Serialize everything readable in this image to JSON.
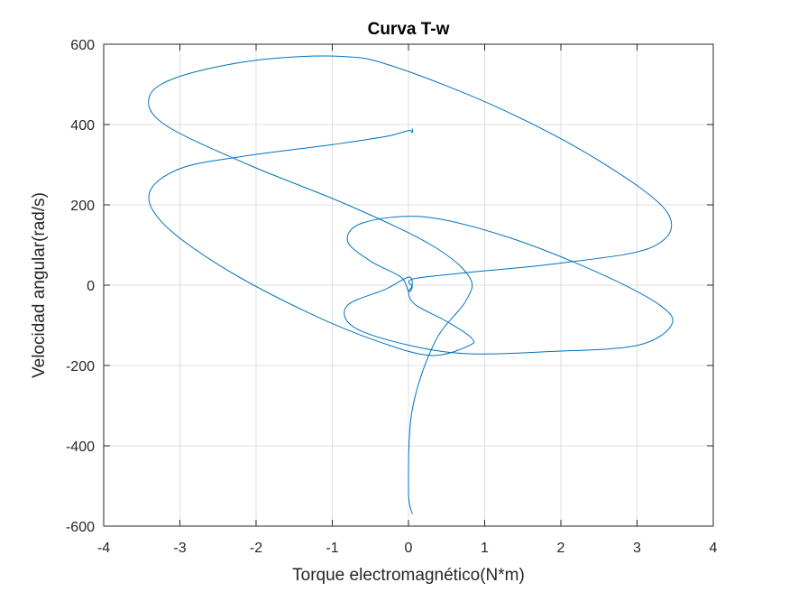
{
  "chart_data": {
    "type": "line",
    "title": "Curva T-w",
    "xlabel": "Torque electromagnético(N*m)",
    "ylabel": "Velocidad angular(rad/s)",
    "xlim": [
      -4,
      4
    ],
    "ylim": [
      -600,
      600
    ],
    "xticks": [
      -4,
      -3,
      -2,
      -1,
      0,
      1,
      2,
      3,
      4
    ],
    "yticks": [
      -600,
      -400,
      -200,
      0,
      200,
      400,
      600
    ],
    "xtick_labels": [
      "-4",
      "-3",
      "-2",
      "-1",
      "0",
      "1",
      "2",
      "3",
      "4"
    ],
    "ytick_labels": [
      "-600",
      "-400",
      "-200",
      "0",
      "200",
      "400",
      "600"
    ],
    "grid": true,
    "color": "#0072BD",
    "series": [
      {
        "x": [
          0.05,
          0.05,
          0.0,
          -0.3,
          -1.0,
          -2.2,
          -3.0,
          -3.4,
          -3.2,
          -2.4,
          -1.3,
          -0.4,
          0.3,
          0.8,
          0.82,
          0.5,
          0.1,
          0.0,
          0.05,
          0.0,
          -0.3,
          -0.8,
          -0.75,
          -0.2,
          0.7,
          1.9,
          3.0,
          3.45,
          3.3,
          2.5,
          1.3,
          0.2,
          -0.6,
          -0.8,
          -0.5,
          -0.1,
          0.0,
          0.05,
          0.05,
          0.7,
          2.0,
          3.2,
          3.4,
          2.5,
          1.2,
          -0.2,
          -0.9,
          -2.0,
          -3.0,
          -3.4,
          -3.2,
          -2.1,
          -0.8,
          0.3,
          0.8,
          0.75,
          0.35,
          0.05,
          0.0,
          0.05
        ],
        "y": [
          390,
          380,
          385,
          370,
          350,
          320,
          290,
          230,
          150,
          40,
          -70,
          -140,
          -175,
          -150,
          -130,
          -90,
          -50,
          -20,
          0,
          20,
          -10,
          -50,
          -100,
          -140,
          -170,
          -165,
          -150,
          -100,
          -50,
          30,
          120,
          170,
          155,
          110,
          60,
          20,
          -15,
          -5,
          15,
          30,
          55,
          95,
          180,
          310,
          440,
          545,
          570,
          560,
          520,
          470,
          400,
          300,
          200,
          100,
          20,
          -40,
          -140,
          -310,
          -510,
          -570
        ]
      }
    ]
  }
}
